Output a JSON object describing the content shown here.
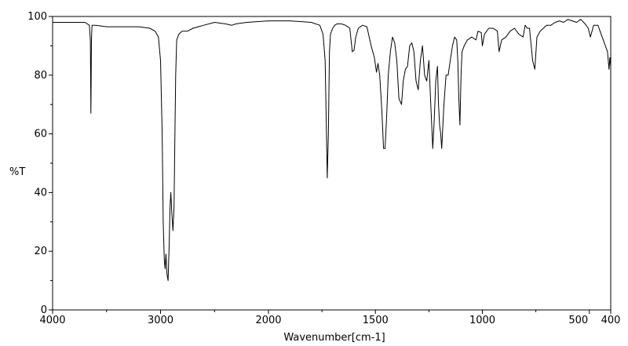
{
  "chart_data": {
    "type": "line",
    "title": "",
    "xlabel": "Wavenumber[cm-1]",
    "ylabel": "%T",
    "xlim": [
      4000,
      400
    ],
    "ylim": [
      0,
      100
    ],
    "x_ticks": [
      4000,
      3000,
      2000,
      1500,
      1000,
      500,
      400
    ],
    "x_tick_labels": [
      "4000",
      "3000",
      "2000",
      "1500",
      "1000",
      "500",
      "400"
    ],
    "y_ticks": [
      0,
      20,
      40,
      60,
      80,
      100
    ],
    "y_tick_labels": [
      "0",
      "20",
      "40",
      "60",
      "80",
      "100"
    ],
    "axis_breaks": [
      {
        "between": [
          2000,
          500
        ],
        "note": "scale changes at 2000 cm-1"
      }
    ],
    "grid": false,
    "series": [
      {
        "color": "#000000",
        "x": [
          4000,
          3800,
          3700,
          3660,
          3650,
          3645,
          3640,
          3635,
          3625,
          3600,
          3500,
          3400,
          3300,
          3200,
          3100,
          3050,
          3020,
          3000,
          2985,
          2975,
          2965,
          2958,
          2950,
          2940,
          2930,
          2920,
          2912,
          2905,
          2895,
          2885,
          2875,
          2868,
          2860,
          2850,
          2830,
          2800,
          2750,
          2700,
          2600,
          2500,
          2400,
          2340,
          2300,
          2200,
          2000,
          1900,
          1800,
          1760,
          1745,
          1735,
          1725,
          1720,
          1715,
          1710,
          1700,
          1690,
          1680,
          1660,
          1640,
          1620,
          1608,
          1600,
          1592,
          1580,
          1560,
          1540,
          1520,
          1505,
          1495,
          1488,
          1480,
          1470,
          1462,
          1455,
          1448,
          1440,
          1430,
          1420,
          1410,
          1400,
          1390,
          1378,
          1370,
          1360,
          1350,
          1340,
          1330,
          1320,
          1310,
          1300,
          1290,
          1280,
          1270,
          1260,
          1250,
          1240,
          1232,
          1225,
          1218,
          1210,
          1205,
          1200,
          1195,
          1190,
          1180,
          1170,
          1160,
          1150,
          1140,
          1130,
          1120,
          1115,
          1110,
          1105,
          1100,
          1095,
          1085,
          1070,
          1050,
          1030,
          1020,
          1005,
          1000,
          990,
          970,
          950,
          930,
          922,
          910,
          890,
          870,
          850,
          830,
          810,
          800,
          790,
          780,
          765,
          755,
          745,
          730,
          700,
          680,
          660,
          640,
          620,
          600,
          580,
          560,
          540,
          520,
          505,
          495,
          480,
          460,
          440,
          425,
          415,
          408,
          404,
          400
        ],
        "y": [
          98,
          98,
          98,
          97,
          92,
          67,
          92,
          97,
          97,
          97,
          96.5,
          96.5,
          96.5,
          96.5,
          96,
          95,
          93,
          85,
          60,
          30,
          17,
          14,
          19,
          12,
          10,
          22,
          35,
          40,
          33,
          27,
          35,
          55,
          80,
          92,
          94,
          95,
          95,
          96,
          97,
          98,
          97.5,
          97,
          97.5,
          98,
          98.5,
          98.5,
          98,
          97,
          94,
          85,
          45,
          60,
          88,
          94,
          96,
          97,
          97.5,
          97.5,
          97,
          96,
          88,
          88.5,
          93,
          96,
          97,
          96.5,
          90,
          86,
          81,
          84,
          80,
          68,
          55,
          55,
          65,
          80,
          88,
          93,
          91,
          85,
          72,
          70,
          78,
          82,
          83,
          90,
          91,
          88,
          78,
          75,
          85,
          90,
          80,
          78,
          85,
          68,
          55,
          65,
          78,
          83,
          70,
          63,
          60,
          55,
          70,
          80,
          80,
          85,
          90,
          93,
          92,
          85,
          72,
          63,
          80,
          88,
          90,
          92,
          93,
          92,
          95,
          94.5,
          90,
          94,
          96,
          96,
          95,
          88,
          92,
          93,
          95,
          96,
          94,
          93,
          97,
          96,
          96,
          85,
          82,
          93,
          95,
          97,
          97,
          98,
          98.5,
          98,
          99,
          98.5,
          98,
          99,
          97.5,
          96,
          93,
          97,
          97,
          93,
          90,
          88,
          82,
          86,
          83
        ]
      }
    ]
  }
}
